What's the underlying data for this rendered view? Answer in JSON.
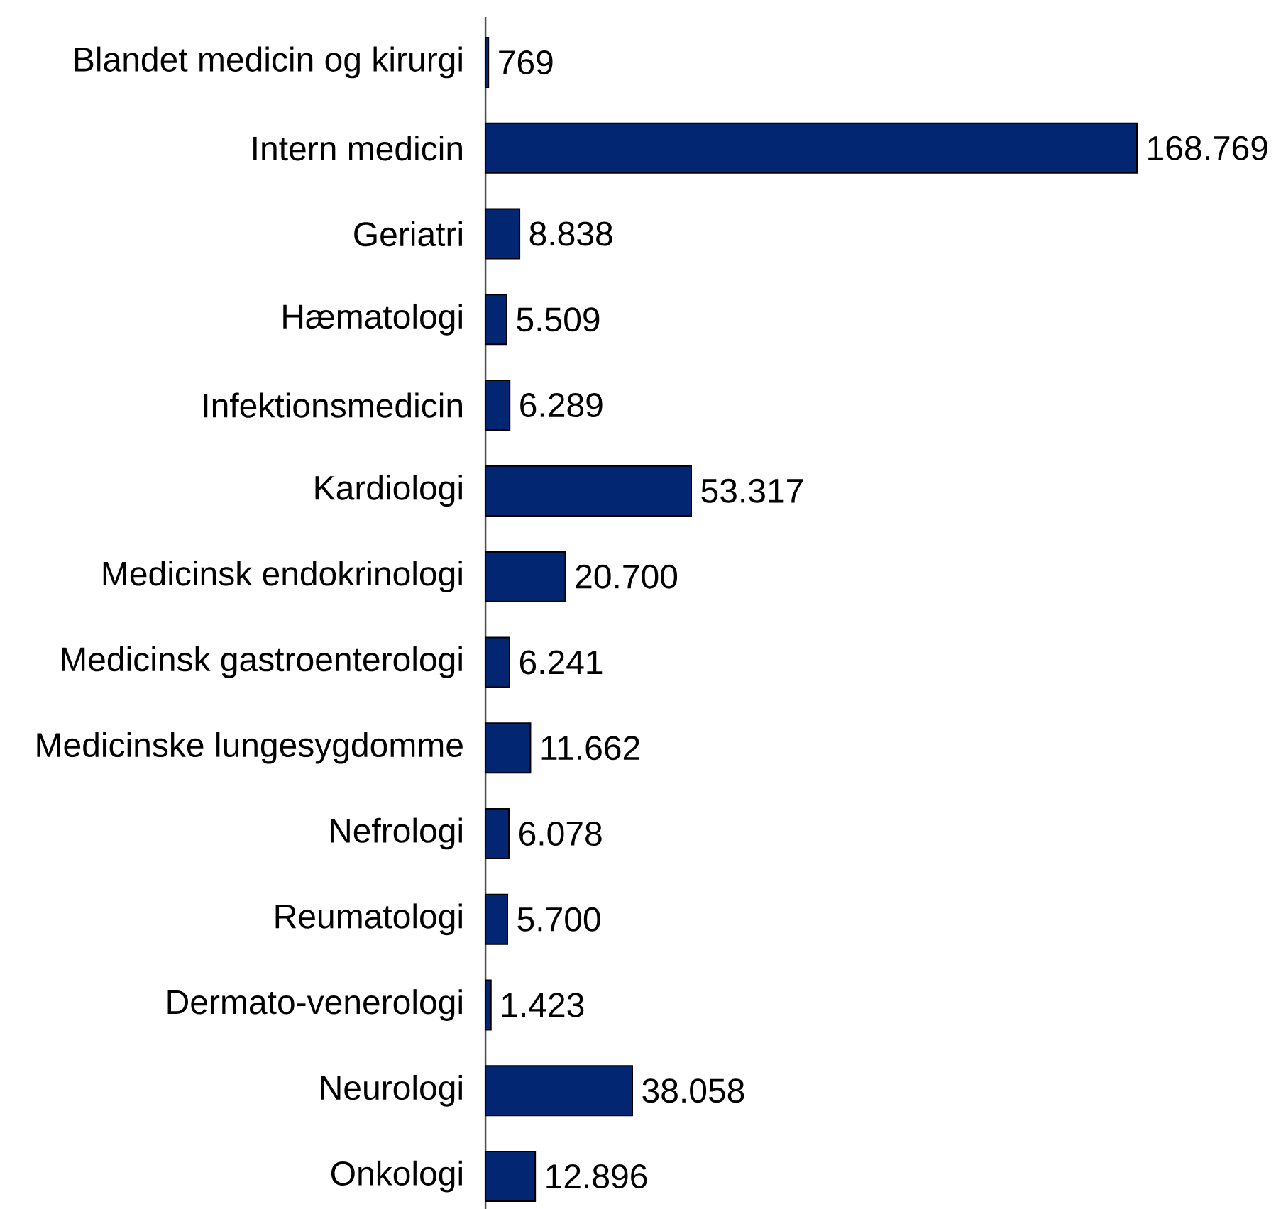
{
  "chart_data": {
    "type": "bar",
    "orientation": "horizontal",
    "categories": [
      "Blandet medicin og kirurgi",
      "Intern medicin",
      "Geriatri",
      "Hæmatologi",
      "Infektionsmedicin",
      "Kardiologi",
      "Medicinsk endokrinologi",
      "Medicinsk gastroenterologi",
      "Medicinske lungesygdomme",
      "Nefrologi",
      "Reumatologi",
      "Dermato-venerologi",
      "Neurologi",
      "Onkologi"
    ],
    "values": [
      769,
      168769,
      8838,
      5509,
      6289,
      53317,
      20700,
      6241,
      11662,
      6078,
      5700,
      1423,
      38058,
      12896
    ],
    "value_labels": [
      "769",
      "168.769",
      "8.838",
      "5.509",
      "6.289",
      "53.317",
      "20.700",
      "6.241",
      "11.662",
      "6.078",
      "5.700",
      "1.423",
      "38.058",
      "12.896"
    ],
    "color": "#022672"
  }
}
